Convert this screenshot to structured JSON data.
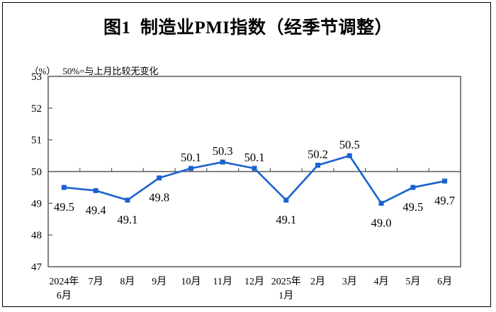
{
  "title": "图1  制造业PMI指数（经季节调整）",
  "subtitle": {
    "unit": "（%）",
    "note": "50%=与上月比较无变化"
  },
  "chart_data": {
    "type": "line",
    "title": "图1 制造业PMI指数（经季节调整）",
    "ylabel": "(%)",
    "categories": [
      "2024年\n6月",
      "7月",
      "8月",
      "9月",
      "10月",
      "11月",
      "12月",
      "2025年\n1月",
      "2月",
      "3月",
      "4月",
      "5月",
      "6月"
    ],
    "series": [
      {
        "name": "制造业PMI指数",
        "values": [
          49.5,
          49.4,
          49.1,
          49.8,
          50.1,
          50.3,
          50.1,
          49.1,
          50.2,
          50.5,
          49.0,
          49.5,
          49.7
        ]
      }
    ],
    "data_labels": [
      "49.5",
      "49.4",
      "49.1",
      "49.8",
      "50.1",
      "50.3",
      "50.1",
      "49.1",
      "50.2",
      "50.5",
      "49.0",
      "49.5",
      "49.7"
    ],
    "ylim": [
      47,
      53
    ],
    "yticks": [
      47,
      48,
      49,
      50,
      51,
      52,
      53
    ],
    "reference_line": 50,
    "grid": false,
    "legend_position": "none",
    "colors": {
      "line": "#1B61CE",
      "marker": "#1B61CE",
      "axis": "#595959",
      "text": "#000000"
    }
  }
}
